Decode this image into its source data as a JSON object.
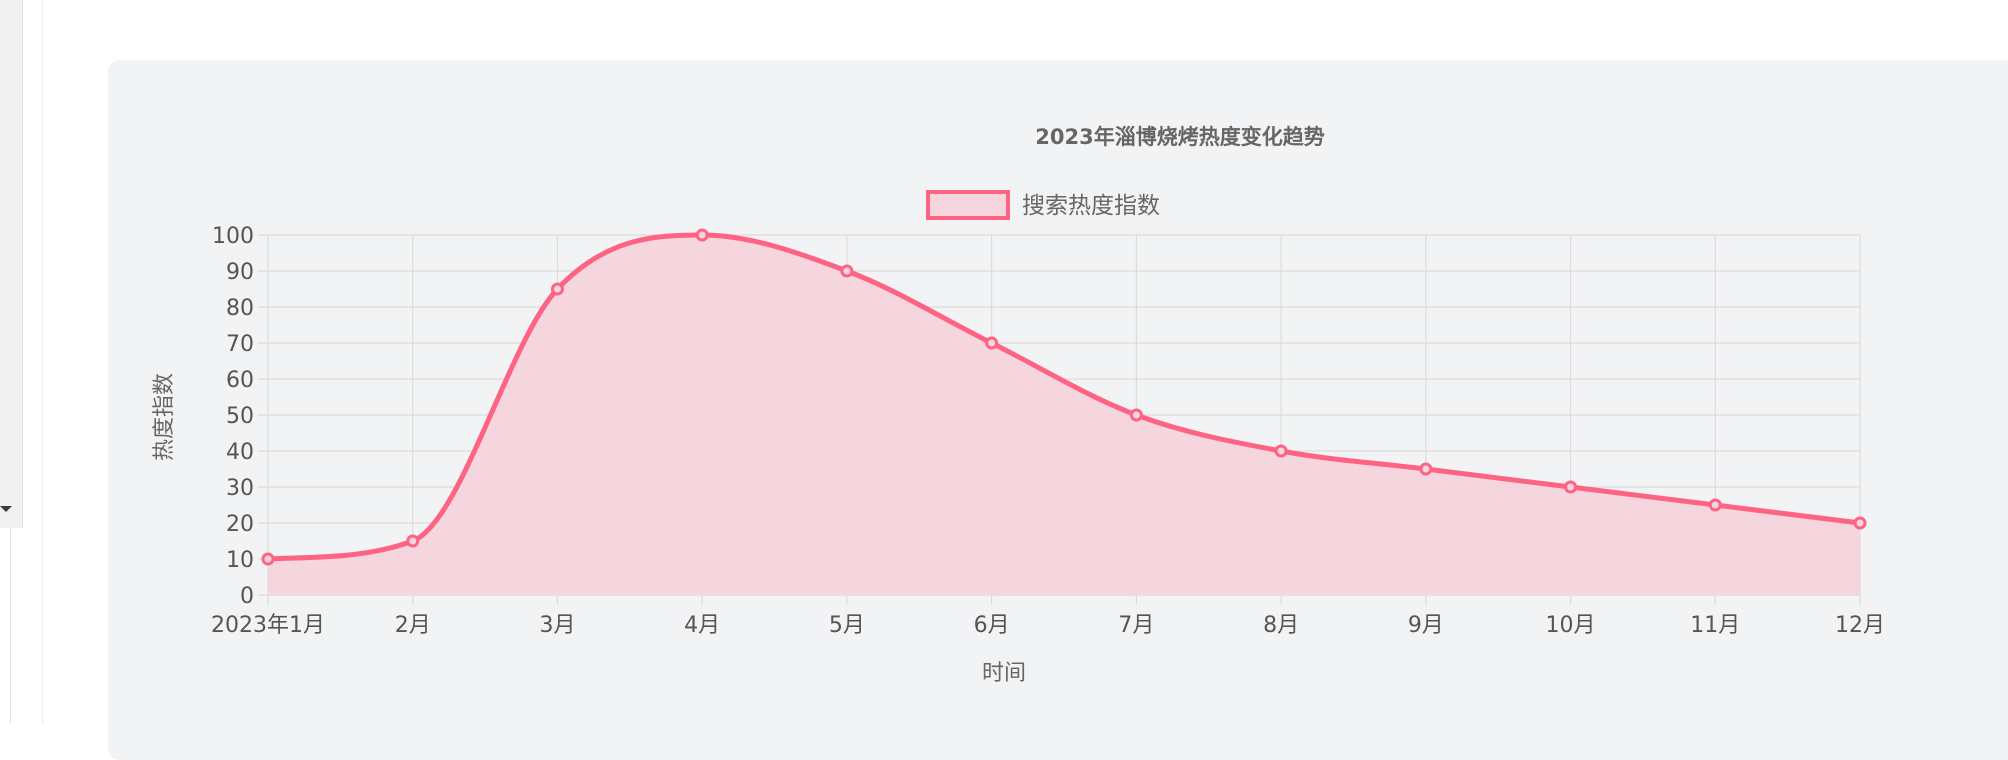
{
  "chart_data": {
    "type": "area",
    "title": "2023年淄博烧烤热度变化趋势",
    "xlabel": "时间",
    "ylabel": "热度指数",
    "categories": [
      "2023年1月",
      "2月",
      "3月",
      "4月",
      "5月",
      "6月",
      "7月",
      "8月",
      "9月",
      "10月",
      "11月",
      "12月"
    ],
    "series": [
      {
        "name": "搜索热度指数",
        "values": [
          10,
          15,
          85,
          100,
          90,
          70,
          50,
          40,
          35,
          30,
          25,
          20
        ]
      }
    ],
    "ylim": [
      0,
      100
    ],
    "yticks": [
      0,
      10,
      20,
      30,
      40,
      50,
      60,
      70,
      80,
      90,
      100
    ],
    "grid": true,
    "legend": "top-center",
    "colors": {
      "line": "#ff6384",
      "fill": "#f5d6df",
      "grid": "#dcdcdc"
    }
  }
}
